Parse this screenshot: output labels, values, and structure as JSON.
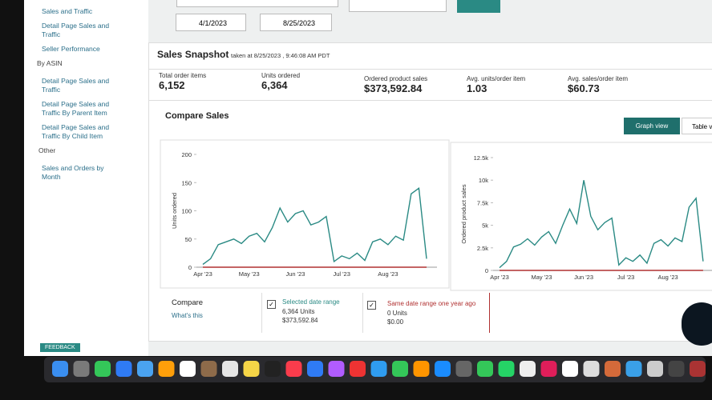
{
  "sidebar": {
    "links": [
      "Sales and Traffic",
      "Detail Page Sales and Traffic",
      "Seller Performance"
    ],
    "asin_heading": "By ASIN",
    "asin_links": [
      "Detail Page Sales and Traffic",
      "Detail Page Sales and Traffic By Parent Item",
      "Detail Page Sales and Traffic By Child Item"
    ],
    "other_heading": "Other",
    "other_links": [
      "Sales and Orders by Month"
    ]
  },
  "filters": {
    "start_date": "4/1/2023",
    "end_date": "8/25/2023"
  },
  "snapshot": {
    "title": "Sales Snapshot",
    "taken_at": "taken at 8/25/2023 , 9:46:08 AM PDT",
    "metrics": [
      {
        "label": "Total order items",
        "value": "6,152"
      },
      {
        "label": "Units ordered",
        "value": "6,364"
      },
      {
        "label": "Ordered product sales",
        "value": "$373,592.84"
      },
      {
        "label": "Avg. units/order item",
        "value": "1.03"
      },
      {
        "label": "Avg. sales/order item",
        "value": "$60.73"
      }
    ]
  },
  "compare_sales": {
    "title": "Compare Sales",
    "tabs": [
      "Graph view",
      "Table view"
    ]
  },
  "compare": {
    "title": "Compare",
    "help": "What's this",
    "selected": {
      "units": "6,364 Units",
      "sales": "$373,592.84"
    },
    "last_year": {
      "units": "0 Units",
      "sales": "$0.00"
    }
  },
  "feedback": "FEEDBACK",
  "chart_data": [
    {
      "type": "line",
      "y_label": "Units ordered",
      "categories": [
        "Apr '23",
        null,
        null,
        null,
        null,
        null,
        "May '23",
        null,
        null,
        null,
        null,
        null,
        "Jun '23",
        null,
        null,
        null,
        null,
        null,
        "Jul '23",
        null,
        null,
        null,
        null,
        null,
        "Aug '23",
        null,
        null,
        null,
        null,
        null
      ],
      "ylim": [
        0,
        200
      ],
      "yticks": [
        0,
        50,
        100,
        150,
        200
      ],
      "series": [
        {
          "name": "Selected date range",
          "color": "#2a8a84",
          "values": [
            5,
            15,
            40,
            45,
            50,
            42,
            55,
            60,
            45,
            70,
            105,
            80,
            95,
            100,
            75,
            80,
            90,
            10,
            20,
            15,
            25,
            12,
            45,
            50,
            40,
            55,
            48,
            130,
            140,
            15
          ]
        },
        {
          "name": "Same date range one year ago",
          "color": "#b03030",
          "values": [
            0,
            0,
            0,
            0,
            0,
            0,
            0,
            0,
            0,
            0,
            0,
            0,
            0,
            0,
            0,
            0,
            0,
            0,
            0,
            0,
            0,
            0,
            0,
            0,
            0,
            0,
            0,
            0,
            0,
            0
          ]
        }
      ]
    },
    {
      "type": "line",
      "y_label": "Ordered product sales",
      "categories": [
        "Apr '23",
        null,
        null,
        null,
        null,
        null,
        "May '23",
        null,
        null,
        null,
        null,
        null,
        "Jun '23",
        null,
        null,
        null,
        null,
        null,
        "Jul '23",
        null,
        null,
        null,
        null,
        null,
        "Aug '23",
        null,
        null,
        null,
        null,
        null
      ],
      "ylim": [
        0,
        12500
      ],
      "yticks": [
        0,
        {
          "value": 2500,
          "label": "2.5k"
        },
        {
          "value": 5000,
          "label": "5k"
        },
        {
          "value": 7500,
          "label": "7.5k"
        },
        {
          "value": 10000,
          "label": "10k"
        },
        {
          "value": 12500,
          "label": "12.5k"
        }
      ],
      "series": [
        {
          "color": "#2a8a84",
          "values": [
            300,
            1000,
            2600,
            2900,
            3500,
            2800,
            3700,
            4300,
            3000,
            5000,
            6800,
            5200,
            10000,
            6000,
            4500,
            5300,
            5800,
            600,
            1400,
            1000,
            1700,
            800,
            3000,
            3400,
            2700,
            3600,
            3200,
            7000,
            8000,
            1000
          ]
        },
        {
          "color": "#b03030",
          "values": [
            0,
            0,
            0,
            0,
            0,
            0,
            0,
            0,
            0,
            0,
            0,
            0,
            0,
            0,
            0,
            0,
            0,
            0,
            0,
            0,
            0,
            0,
            0,
            0,
            0,
            0,
            0,
            0,
            0,
            0
          ]
        }
      ]
    }
  ]
}
